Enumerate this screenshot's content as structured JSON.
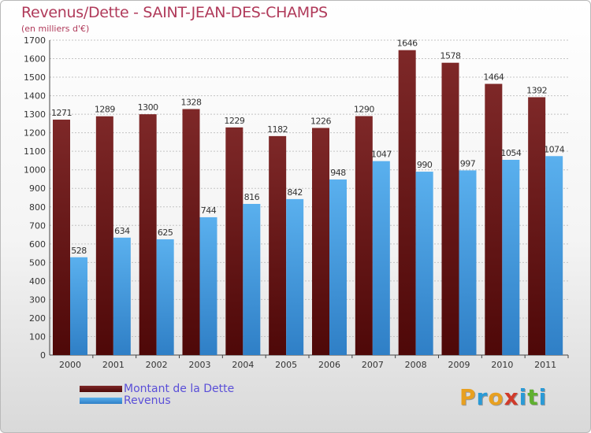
{
  "title": "Revenus/Dette - SAINT-JEAN-DES-CHAMPS",
  "subtitle": "(en milliers d'€)",
  "logo": {
    "text": "Proxiti",
    "letters": [
      {
        "ch": "P",
        "color": "#e8a020"
      },
      {
        "ch": "r",
        "color": "#2a9ad6"
      },
      {
        "ch": "o",
        "color": "#e8a020"
      },
      {
        "ch": "x",
        "color": "#d03a2a"
      },
      {
        "ch": "i",
        "color": "#2a9ad6"
      },
      {
        "ch": "t",
        "color": "#60b030"
      },
      {
        "ch": "i",
        "color": "#2a9ad6"
      }
    ]
  },
  "chart_data": {
    "type": "bar",
    "categories": [
      "2000",
      "2001",
      "2002",
      "2003",
      "2004",
      "2005",
      "2006",
      "2007",
      "2008",
      "2009",
      "2010",
      "2011"
    ],
    "series": [
      {
        "name": "Montant de la Dette",
        "color": "#6e1c1c",
        "values": [
          1271,
          1289,
          1300,
          1328,
          1229,
          1182,
          1226,
          1290,
          1646,
          1578,
          1464,
          1392
        ]
      },
      {
        "name": "Revenus",
        "color": "#4ea3e3",
        "values": [
          528,
          634,
          625,
          744,
          816,
          842,
          948,
          1047,
          990,
          997,
          1054,
          1074
        ]
      }
    ],
    "ylim": [
      0,
      1700
    ],
    "yticks": [
      "0",
      "100",
      "200",
      "300",
      "400",
      "500",
      "600",
      "700",
      "800",
      "900",
      "1000",
      "1100",
      "1200",
      "1300",
      "1400",
      "1500",
      "1600",
      "1700"
    ],
    "grid": true,
    "legend": "bottom-left"
  }
}
